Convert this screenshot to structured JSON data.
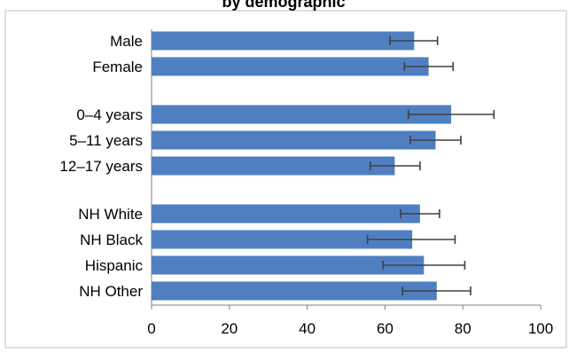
{
  "title_fragment": "by demographic",
  "chart_data": {
    "type": "bar",
    "orientation": "horizontal",
    "title": "",
    "xlabel": "",
    "ylabel": "",
    "xlim": [
      0,
      100
    ],
    "xticks": [
      0,
      20,
      40,
      60,
      80,
      100
    ],
    "grid": false,
    "legend": "none",
    "bar_color": "#4f7fc1",
    "error_bar_color": "#404040",
    "groups": [
      {
        "categories": [
          "Male",
          "Female"
        ],
        "values": [
          67.5,
          71.2
        ],
        "error_low": [
          61.3,
          65.0
        ],
        "error_high": [
          73.5,
          77.5
        ]
      },
      {
        "categories": [
          "0–4 years",
          "5–11 years",
          "12–17 years"
        ],
        "values": [
          77.0,
          73.0,
          62.5
        ],
        "error_low": [
          66.0,
          66.5,
          56.2
        ],
        "error_high": [
          88.0,
          79.5,
          69.0
        ]
      },
      {
        "categories": [
          "NH White",
          "NH Black",
          "Hispanic",
          "NH Other"
        ],
        "values": [
          69.0,
          67.0,
          70.0,
          73.3
        ],
        "error_low": [
          64.0,
          55.5,
          59.5,
          64.5
        ],
        "error_high": [
          74.0,
          78.0,
          80.5,
          82.0
        ]
      }
    ]
  }
}
